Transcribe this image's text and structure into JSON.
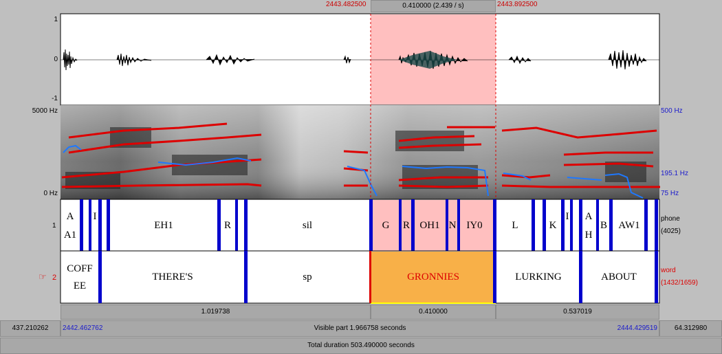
{
  "top": {
    "sel_start": "2443.482500",
    "sel_duration": "0.410000 (2.439 / s)",
    "sel_end": "2443.892500"
  },
  "waveform_axis": {
    "top": "1",
    "mid": "0",
    "bottom": "-1"
  },
  "spectrogram_axis": {
    "left_top": "5000 Hz",
    "left_bottom": "0 Hz",
    "right_top": "500 Hz",
    "right_mid": "195.1 Hz",
    "right_bottom": "75 Hz"
  },
  "tiers": {
    "phone": {
      "index": "1",
      "name": "phone",
      "count": "(4025)"
    },
    "word": {
      "pointer": "☞",
      "index": "2",
      "name": "word",
      "count": "(1432/1659)"
    }
  },
  "phone_labels": [
    "A",
    "A1",
    "I",
    "EH1",
    "R",
    "sil",
    "G",
    "R",
    "OH1",
    "N",
    "IY0",
    "L",
    "K",
    "I",
    "A",
    "H",
    "B",
    "AW1"
  ],
  "word_labels": [
    "COFF",
    "EE",
    "THERE'S",
    "sp",
    "GRONNIES",
    "LURKING",
    "ABOUT"
  ],
  "intervals": {
    "left": "1.019738",
    "selection": "0.410000",
    "right": "0.537019"
  },
  "bottom": {
    "left_total": "437.210262",
    "visible_start": "2442.462762",
    "visible_part": "Visible part 1.966758 seconds",
    "visible_end": "2444.429519",
    "right_total": "64.312980",
    "total_duration": "Total duration 503.490000 seconds"
  },
  "colors": {
    "selection": "#ffbfbf",
    "word_highlight": "#f8b048",
    "boundary": "#0000cc",
    "formant": "#dd0000",
    "pitch": "#1e78ff"
  }
}
